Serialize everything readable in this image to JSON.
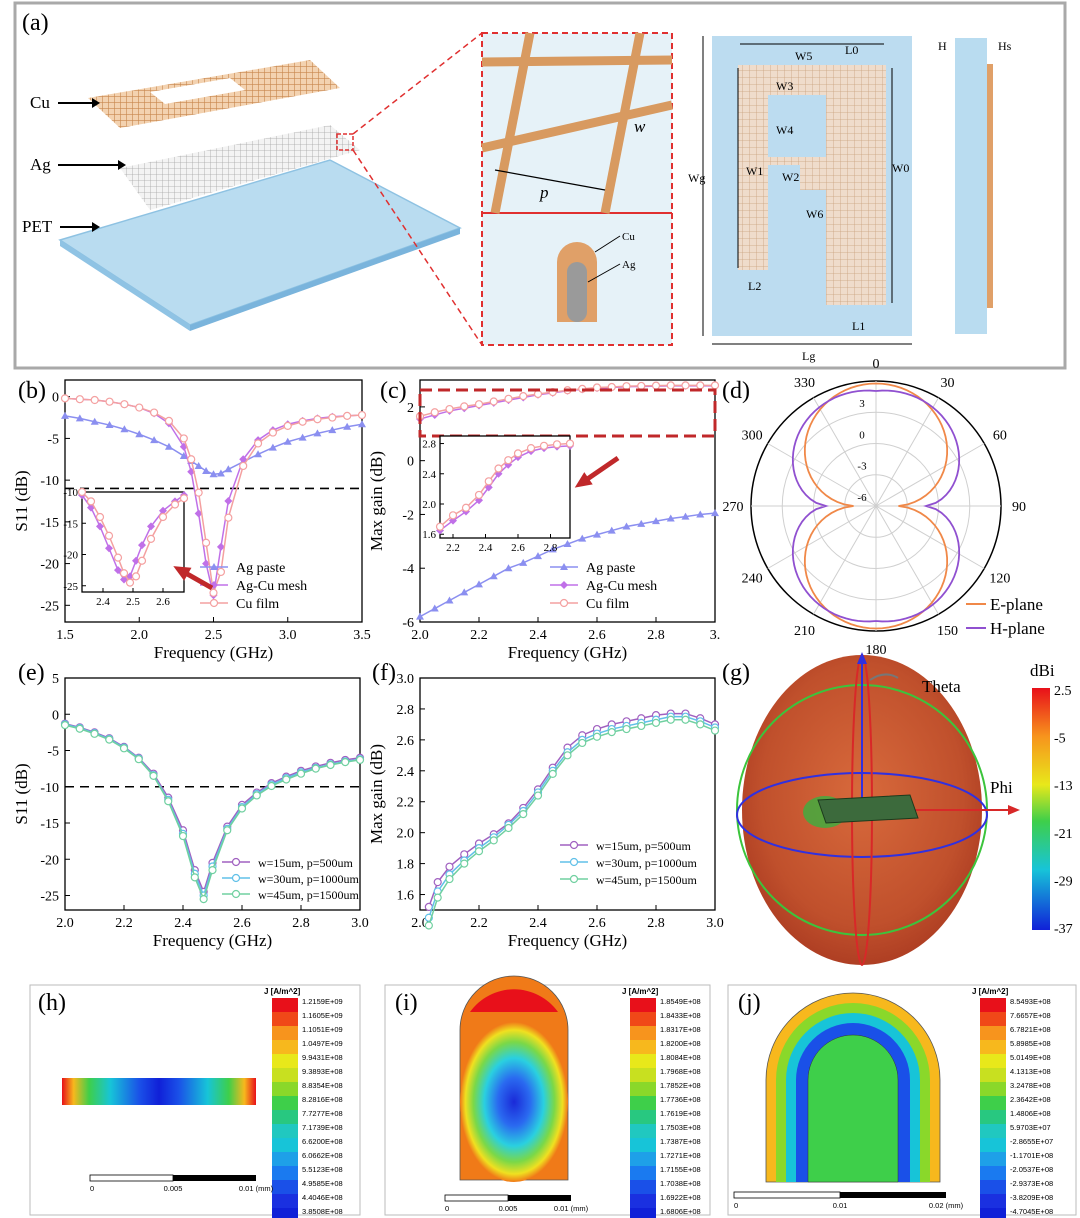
{
  "panels": {
    "a": "(a)",
    "b": "(b)",
    "c": "(c)",
    "d": "(d)",
    "e": "(e)",
    "f": "(f)",
    "g": "(g)",
    "h": "(h)",
    "i": "(i)",
    "j": "(j)"
  },
  "colors": {
    "ag_paste": "#8b8ff0",
    "ag_cu": "#c070e8",
    "cu_film": "#f4a0a0",
    "e_plane": "#f08848",
    "h_plane": "#9050d0",
    "w15": "#a060c0",
    "w30": "#60c0e8",
    "w45": "#70d0a0",
    "copper": "#d89a60",
    "pet": "#b9dcf0"
  },
  "schematic": {
    "layer_labels": [
      "Cu",
      "Ag",
      "PET"
    ],
    "zoom_labels": {
      "p": "p",
      "w": "w",
      "cu": "Cu",
      "ag": "Ag"
    },
    "dims": {
      "L0": "L0",
      "W5": "W5",
      "W3": "W3",
      "W4": "W4",
      "W1": "W1",
      "W2": "W2",
      "W6": "W6",
      "Wg": "Wg",
      "W0": "W0",
      "L2": "L2",
      "L1": "L1",
      "Lg": "Lg",
      "H": "H",
      "Hs": "Hs"
    }
  },
  "chart_data": [
    {
      "id": "b",
      "type": "line",
      "xlabel": "Frequency (GHz)",
      "ylabel": "S11 (dB)",
      "xlim": [
        1.5,
        3.5
      ],
      "ylim": [
        -27,
        2
      ],
      "xticks": [
        "1.5",
        "2.0",
        "2.5",
        "3.0",
        "3.5"
      ],
      "yticks": [
        "0",
        "-5",
        "-10",
        "-15",
        "-20",
        "-25"
      ],
      "ref_line": -11,
      "x": [
        1.5,
        1.6,
        1.7,
        1.8,
        1.9,
        2.0,
        2.1,
        2.2,
        2.3,
        2.35,
        2.4,
        2.45,
        2.5,
        2.55,
        2.6,
        2.7,
        2.8,
        2.9,
        3.0,
        3.1,
        3.2,
        3.3,
        3.4,
        3.5
      ],
      "series": [
        {
          "name": "Ag paste",
          "values": [
            -2.3,
            -2.6,
            -3.0,
            -3.4,
            -3.9,
            -4.5,
            -5.2,
            -6.0,
            -7.1,
            -7.7,
            -8.3,
            -8.9,
            -9.3,
            -9.2,
            -8.7,
            -7.8,
            -6.9,
            -6.1,
            -5.4,
            -4.9,
            -4.4,
            -4.0,
            -3.6,
            -3.3
          ]
        },
        {
          "name": "Ag-Cu mesh",
          "values": [
            -0.2,
            -0.3,
            -0.4,
            -0.6,
            -0.9,
            -1.3,
            -2.0,
            -3.2,
            -6.0,
            -9.0,
            -14.0,
            -20.0,
            -23.8,
            -18.0,
            -12.5,
            -7.5,
            -5.2,
            -4.0,
            -3.3,
            -2.9,
            -2.6,
            -2.4,
            -2.3,
            -2.2
          ]
        },
        {
          "name": "Cu film",
          "values": [
            -0.2,
            -0.3,
            -0.4,
            -0.6,
            -0.9,
            -1.3,
            -1.9,
            -2.9,
            -5.0,
            -7.5,
            -11.5,
            -17.5,
            -23.5,
            -21.0,
            -14.5,
            -8.3,
            -5.6,
            -4.3,
            -3.5,
            -3.0,
            -2.7,
            -2.5,
            -2.3,
            -2.2
          ]
        }
      ],
      "inset": {
        "xlim": [
          2.33,
          2.67
        ],
        "ylim": [
          -26,
          -10
        ],
        "xticks": [
          "2.4",
          "2.5",
          "2.6"
        ],
        "yticks": [
          "-10",
          "-15",
          "-20",
          "-25"
        ],
        "x": [
          2.33,
          2.36,
          2.39,
          2.42,
          2.45,
          2.47,
          2.49,
          2.51,
          2.53,
          2.56,
          2.6,
          2.64,
          2.67
        ],
        "series": [
          {
            "name": "Ag-Cu mesh",
            "values": [
              -10.5,
              -12.5,
              -15.5,
              -19.0,
              -22.5,
              -24.0,
              -23.5,
              -21.0,
              -18.5,
              -15.5,
              -13.0,
              -11.5,
              -10.5
            ]
          },
          {
            "name": "Cu film",
            "values": [
              -10.0,
              -11.5,
              -14.0,
              -17.0,
              -20.5,
              -23.0,
              -24.5,
              -23.5,
              -21.0,
              -17.5,
              -14.0,
              -12.0,
              -11.0
            ]
          }
        ]
      }
    },
    {
      "id": "c",
      "type": "line",
      "xlabel": "Frequency (GHz)",
      "ylabel": "Max gain (dB)",
      "xlim": [
        2.0,
        3.0
      ],
      "ylim": [
        -6,
        3
      ],
      "xticks": [
        "2.0",
        "2.2",
        "2.4",
        "2.6",
        "2.8",
        "3."
      ],
      "yticks": [
        "2",
        "0",
        "-2",
        "-4",
        "-6"
      ],
      "x": [
        2.0,
        2.05,
        2.1,
        2.15,
        2.2,
        2.25,
        2.3,
        2.35,
        2.4,
        2.45,
        2.5,
        2.55,
        2.6,
        2.65,
        2.7,
        2.75,
        2.8,
        2.85,
        2.9,
        2.95,
        3.0
      ],
      "series": [
        {
          "name": "Ag paste",
          "values": [
            -5.8,
            -5.5,
            -5.2,
            -4.9,
            -4.6,
            -4.3,
            -4.0,
            -3.8,
            -3.55,
            -3.3,
            -3.1,
            -2.9,
            -2.75,
            -2.6,
            -2.45,
            -2.35,
            -2.25,
            -2.15,
            -2.08,
            -2.0,
            -1.95
          ]
        },
        {
          "name": "Ag-Cu mesh",
          "values": [
            1.55,
            1.7,
            1.85,
            1.95,
            2.05,
            2.15,
            2.25,
            2.35,
            2.45,
            2.52,
            2.6,
            2.65,
            2.7,
            2.72,
            2.75,
            2.76,
            2.77,
            2.78,
            2.78,
            2.78,
            2.78
          ]
        },
        {
          "name": "Cu film",
          "values": [
            1.65,
            1.8,
            1.92,
            2.02,
            2.1,
            2.2,
            2.3,
            2.4,
            2.48,
            2.55,
            2.62,
            2.67,
            2.72,
            2.74,
            2.77,
            2.78,
            2.79,
            2.8,
            2.8,
            2.8,
            2.8
          ]
        }
      ],
      "inset": {
        "xlim": [
          2.12,
          2.92
        ],
        "ylim": [
          1.55,
          2.9
        ],
        "xticks": [
          "2.2",
          "2.4",
          "2.6",
          "2.8"
        ],
        "yticks": [
          "2.8",
          "2.4",
          "2.0",
          "1.6"
        ],
        "x": [
          2.12,
          2.2,
          2.28,
          2.36,
          2.42,
          2.48,
          2.54,
          2.6,
          2.68,
          2.76,
          2.84,
          2.92
        ],
        "series": [
          {
            "name": "Ag-Cu mesh",
            "values": [
              1.65,
              1.78,
              1.9,
              2.05,
              2.22,
              2.4,
              2.52,
              2.62,
              2.7,
              2.74,
              2.76,
              2.77
            ]
          },
          {
            "name": "Cu film",
            "values": [
              1.7,
              1.85,
              1.95,
              2.12,
              2.3,
              2.47,
              2.58,
              2.67,
              2.74,
              2.77,
              2.79,
              2.8
            ]
          }
        ]
      }
    },
    {
      "id": "d",
      "type": "polar",
      "angle_labels": [
        "0",
        "30",
        "60",
        "90",
        "120",
        "150",
        "180",
        "210",
        "240",
        "270",
        "300",
        "330"
      ],
      "r_labels": [
        "3",
        "0",
        "-3",
        "-6"
      ],
      "series": [
        {
          "name": "E-plane"
        },
        {
          "name": "H-plane"
        }
      ]
    },
    {
      "id": "e",
      "type": "line",
      "xlabel": "Frequency (GHz)",
      "ylabel": "S11 (dB)",
      "xlim": [
        2.0,
        3.0
      ],
      "ylim": [
        -27,
        5
      ],
      "xticks": [
        "2.0",
        "2.2",
        "2.4",
        "2.6",
        "2.8",
        "3.0"
      ],
      "yticks": [
        "5",
        "0",
        "-5",
        "-10",
        "-15",
        "-20",
        "-25"
      ],
      "ref_line": -10,
      "x": [
        2.0,
        2.05,
        2.1,
        2.15,
        2.2,
        2.25,
        2.3,
        2.35,
        2.4,
        2.44,
        2.47,
        2.5,
        2.55,
        2.6,
        2.65,
        2.7,
        2.75,
        2.8,
        2.85,
        2.9,
        2.95,
        3.0
      ],
      "series": [
        {
          "name": "w=15um, p=500um",
          "values": [
            -1.3,
            -1.8,
            -2.5,
            -3.3,
            -4.5,
            -6.0,
            -8.2,
            -11.5,
            -16.0,
            -21.5,
            -24.5,
            -20.5,
            -15.5,
            -12.5,
            -10.8,
            -9.5,
            -8.6,
            -7.8,
            -7.2,
            -6.7,
            -6.3,
            -6.0
          ]
        },
        {
          "name": "w=30um, p=1000um",
          "values": [
            -1.4,
            -1.9,
            -2.6,
            -3.4,
            -4.6,
            -6.1,
            -8.4,
            -11.8,
            -16.5,
            -22.0,
            -25.0,
            -21.0,
            -15.8,
            -12.8,
            -11.0,
            -9.7,
            -8.8,
            -8.0,
            -7.4,
            -6.9,
            -6.5,
            -6.2
          ]
        },
        {
          "name": "w=45um, p=1500um",
          "values": [
            -1.5,
            -2.0,
            -2.7,
            -3.5,
            -4.7,
            -6.2,
            -8.5,
            -12.0,
            -16.8,
            -22.5,
            -25.5,
            -21.5,
            -16.0,
            -13.0,
            -11.2,
            -9.9,
            -9.0,
            -8.2,
            -7.5,
            -7.0,
            -6.6,
            -6.3
          ]
        }
      ]
    },
    {
      "id": "f",
      "type": "line",
      "xlabel": "Frequency (GHz)",
      "ylabel": "Max gain (dB)",
      "xlim": [
        2.0,
        3.0
      ],
      "ylim": [
        1.5,
        3.0
      ],
      "xticks": [
        "2.0",
        "2.2",
        "2.4",
        "2.6",
        "2.8",
        "3.0"
      ],
      "yticks": [
        "3.0",
        "2.8",
        "2.6",
        "2.4",
        "2.2",
        "2.0",
        "1.8",
        "1.6"
      ],
      "x": [
        2.03,
        2.06,
        2.1,
        2.15,
        2.2,
        2.25,
        2.3,
        2.35,
        2.4,
        2.45,
        2.5,
        2.55,
        2.6,
        2.65,
        2.7,
        2.75,
        2.8,
        2.85,
        2.9,
        2.95,
        3.0
      ],
      "series": [
        {
          "name": "w=15um, p=500um",
          "values": [
            1.52,
            1.68,
            1.78,
            1.86,
            1.93,
            1.99,
            2.06,
            2.16,
            2.28,
            2.42,
            2.55,
            2.63,
            2.67,
            2.7,
            2.72,
            2.74,
            2.76,
            2.77,
            2.77,
            2.74,
            2.7
          ]
        },
        {
          "name": "w=30um, p=1000um",
          "values": [
            1.45,
            1.62,
            1.73,
            1.82,
            1.9,
            1.97,
            2.05,
            2.14,
            2.26,
            2.4,
            2.52,
            2.6,
            2.64,
            2.67,
            2.69,
            2.71,
            2.73,
            2.75,
            2.75,
            2.72,
            2.68
          ]
        },
        {
          "name": "w=45um, p=1500um",
          "values": [
            1.4,
            1.58,
            1.7,
            1.8,
            1.88,
            1.95,
            2.03,
            2.12,
            2.24,
            2.38,
            2.5,
            2.58,
            2.62,
            2.65,
            2.67,
            2.69,
            2.71,
            2.73,
            2.73,
            2.7,
            2.66
          ]
        }
      ]
    },
    {
      "id": "g",
      "type": "3d-pattern",
      "labels": {
        "theta": "Theta",
        "phi": "Phi"
      },
      "colorbar": {
        "title": "dBi",
        "ticks": [
          "2.5",
          "-5",
          "-13",
          "-21",
          "-29",
          "-37"
        ]
      }
    },
    {
      "id": "h",
      "type": "heatmap",
      "colorbar": {
        "title": "J [A/m^2]",
        "ticks": [
          "1.2159E+09",
          "1.1605E+09",
          "1.1051E+09",
          "1.0497E+09",
          "9.9431E+08",
          "9.3893E+08",
          "8.8354E+08",
          "8.2816E+08",
          "7.7277E+08",
          "7.1739E+08",
          "6.6200E+08",
          "6.0662E+08",
          "5.5123E+08",
          "4.9585E+08",
          "4.4046E+08",
          "3.8508E+08"
        ]
      },
      "scale": [
        "0",
        "0.005",
        "0.01 (mm)"
      ]
    },
    {
      "id": "i",
      "type": "heatmap",
      "colorbar": {
        "title": "J [A/m^2]",
        "ticks": [
          "1.8549E+08",
          "1.8433E+08",
          "1.8317E+08",
          "1.8200E+08",
          "1.8084E+08",
          "1.7968E+08",
          "1.7852E+08",
          "1.7736E+08",
          "1.7619E+08",
          "1.7503E+08",
          "1.7387E+08",
          "1.7271E+08",
          "1.7155E+08",
          "1.7038E+08",
          "1.6922E+08",
          "1.6806E+08"
        ]
      },
      "scale": [
        "0",
        "0.005",
        "0.01 (mm)"
      ]
    },
    {
      "id": "j",
      "type": "heatmap",
      "colorbar": {
        "title": "J [A/m^2]",
        "ticks": [
          "8.5493E+08",
          "7.6657E+08",
          "6.7821E+08",
          "5.8985E+08",
          "5.0149E+08",
          "4.1313E+08",
          "3.2478E+08",
          "2.3642E+08",
          "1.4806E+08",
          "5.9703E+07",
          "-2.8655E+07",
          "-1.1701E+08",
          "-2.0537E+08",
          "-2.9373E+08",
          "-3.8209E+08",
          "-4.7045E+08"
        ]
      },
      "scale": [
        "0",
        "0.01",
        "0.02 (mm)"
      ]
    }
  ]
}
